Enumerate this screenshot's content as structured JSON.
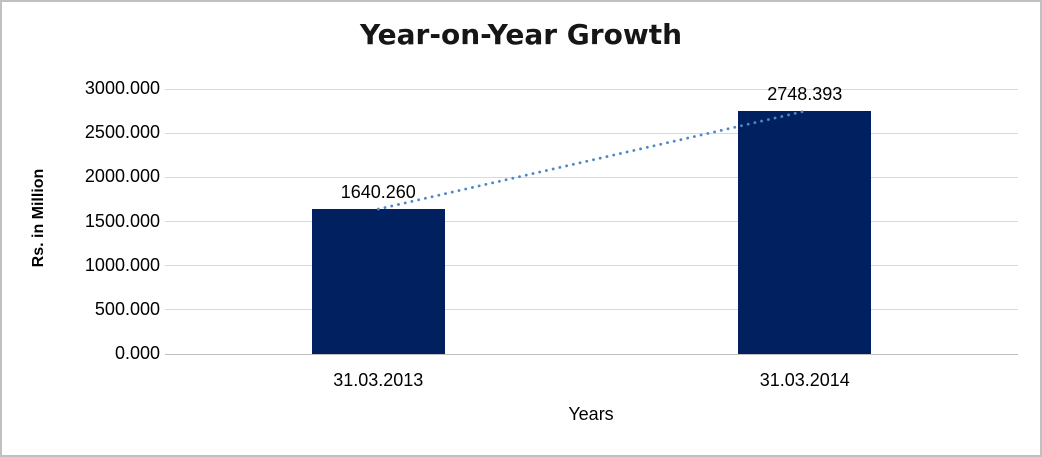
{
  "chart_data": {
    "type": "bar",
    "title": "Year-on-Year Growth",
    "xlabel": "Years",
    "ylabel": "Rs. in Million",
    "categories": [
      "31.03.2013",
      "31.03.2014"
    ],
    "values": [
      1640.26,
      2748.393
    ],
    "data_labels": [
      "1640.260",
      "2748.393"
    ],
    "ylim": [
      0,
      3000
    ],
    "y_tick_step": 500,
    "y_tick_labels": [
      "0.000",
      "500.000",
      "1000.000",
      "1500.000",
      "2000.000",
      "2500.000",
      "3000.000"
    ],
    "grid": true,
    "legend": "none",
    "trendline": {
      "style": "dotted",
      "from_category": "31.03.2013",
      "to_category": "31.03.2014"
    },
    "colors": {
      "bar": "#002060",
      "trendline": "#4E87C8",
      "gridline": "#D9D9D9",
      "axis_line": "#BFBFBF",
      "text": "#000000",
      "frame_border": "#C0C0C0"
    }
  }
}
